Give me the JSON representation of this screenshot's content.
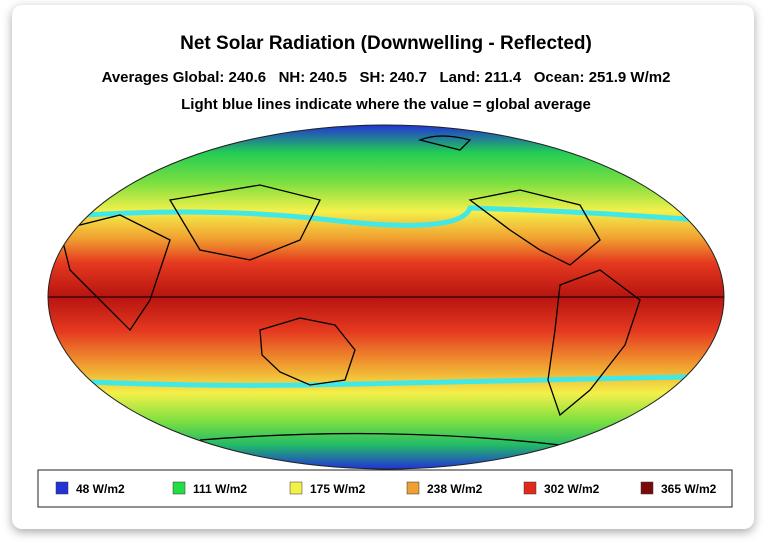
{
  "title": "Net Solar Radiation (Downwelling - Reflected)",
  "averages_line": "Averages Global: 240.6   NH: 240.5   SH: 240.7   Land: 211.4   Ocean: 251.9 W/m2",
  "note": "Light blue lines indicate where the value = global average",
  "legend": [
    {
      "label": "48 W/m2",
      "color": "#2233d6"
    },
    {
      "label": "111 W/m2",
      "color": "#22dd44"
    },
    {
      "label": "175 W/m2",
      "color": "#f4f04a"
    },
    {
      "label": "238 W/m2",
      "color": "#f0a030"
    },
    {
      "label": "302 W/m2",
      "color": "#e02a1c"
    },
    {
      "label": "365 W/m2",
      "color": "#7a0a0a"
    }
  ]
}
